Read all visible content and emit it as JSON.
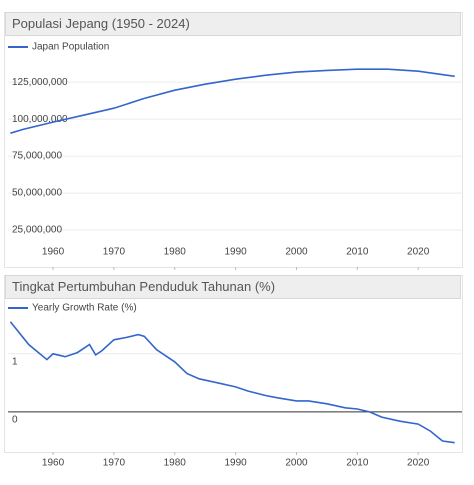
{
  "chart_data": [
    {
      "type": "line",
      "title": "Populasi Jepang (1950 - 2024)",
      "x": [
        1953,
        1955,
        1960,
        1965,
        1970,
        1975,
        1980,
        1985,
        1990,
        1995,
        2000,
        2005,
        2010,
        2015,
        2020,
        2026
      ],
      "series": [
        {
          "name": "Japan Population",
          "color": "#3366cc",
          "values": [
            90500000,
            93000000,
            98000000,
            102700000,
            107400000,
            114000000,
            119600000,
            123600000,
            127000000,
            129700000,
            131800000,
            133000000,
            133800000,
            133800000,
            132400000,
            129000000
          ]
        }
      ],
      "xlim": [
        1952.6,
        2027.2
      ],
      "xticks": [
        1960,
        1970,
        1980,
        1990,
        2000,
        2010,
        2020
      ],
      "ylim": [
        0,
        140000000
      ],
      "yticks": [
        {
          "value": 25000000,
          "label": "25,000,000"
        },
        {
          "value": 50000000,
          "label": "50,000,000"
        },
        {
          "value": 75000000,
          "label": "75,000,000"
        },
        {
          "value": 100000000,
          "label": "100,000,000"
        },
        {
          "value": 125000000,
          "label": "125,000,000"
        }
      ],
      "grid": true
    },
    {
      "type": "line",
      "title": "Tingkat Pertumbuhan Penduduk Tahunan (%)",
      "x": [
        1953,
        1956,
        1959,
        1960,
        1962,
        1964,
        1966,
        1967,
        1968,
        1970,
        1972,
        1974,
        1975,
        1977,
        1980,
        1982,
        1984,
        1987,
        1990,
        1992,
        1995,
        1997,
        2000,
        2002,
        2005,
        2008,
        2010,
        2012,
        2014,
        2017,
        2020,
        2022,
        2024,
        2026
      ],
      "series": [
        {
          "name": "Yearly Growth Rate (%)",
          "color": "#3366cc",
          "values": [
            1.55,
            1.16,
            0.9,
            1.0,
            0.95,
            1.02,
            1.16,
            0.98,
            1.05,
            1.24,
            1.28,
            1.33,
            1.3,
            1.07,
            0.86,
            0.66,
            0.57,
            0.5,
            0.43,
            0.36,
            0.28,
            0.24,
            0.19,
            0.19,
            0.14,
            0.07,
            0.05,
            0.0,
            -0.09,
            -0.16,
            -0.21,
            -0.33,
            -0.5,
            -0.53
          ]
        }
      ],
      "xlim": [
        1952.6,
        2027.2
      ],
      "xticks": [
        1960,
        1970,
        1980,
        1990,
        2000,
        2010,
        2020
      ],
      "ylim": [
        -0.69,
        1.65
      ],
      "yticks": [
        0,
        1
      ],
      "grid": true
    }
  ]
}
